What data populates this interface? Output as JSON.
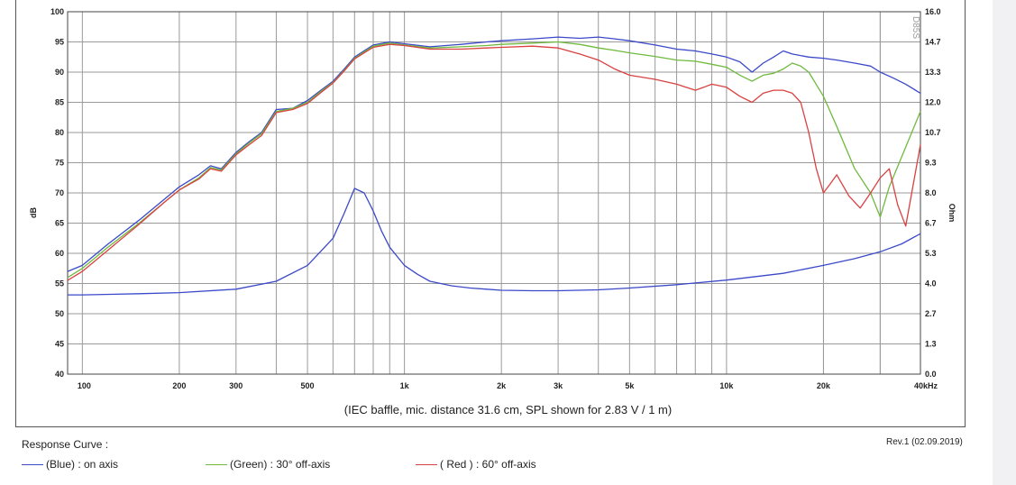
{
  "chart_data": {
    "type": "line",
    "x_scale": "log",
    "xlim": [
      90,
      40000
    ],
    "ylim_left": [
      40,
      100
    ],
    "ylim_right": [
      0.0,
      16.0
    ],
    "grid": true,
    "ylabel_left": "dB",
    "ylabel_right": "Ohm",
    "x_tick_labels": [
      {
        "value": 100,
        "label": "100"
      },
      {
        "value": 200,
        "label": "200"
      },
      {
        "value": 300,
        "label": "300"
      },
      {
        "value": 500,
        "label": "500"
      },
      {
        "value": 1000,
        "label": "1k"
      },
      {
        "value": 2000,
        "label": "2k"
      },
      {
        "value": 3000,
        "label": "3k"
      },
      {
        "value": 5000,
        "label": "5k"
      },
      {
        "value": 10000,
        "label": "10k"
      },
      {
        "value": 20000,
        "label": "20k"
      },
      {
        "value": 40000,
        "label": "40kHz"
      }
    ],
    "y_tick_labels_left": [
      "100",
      "95",
      "90",
      "85",
      "80",
      "75",
      "70",
      "65",
      "60",
      "55",
      "50",
      "45",
      "40"
    ],
    "y_tick_labels_right": [
      "16.0",
      "14.7",
      "13.3",
      "12.0",
      "10.7",
      "9.3",
      "8.0",
      "6.7",
      "5.3",
      "4.0",
      "2.7",
      "1.3",
      "0.0"
    ],
    "watermark": "D85S",
    "series": [
      {
        "name": "(Blue)  : on axis",
        "color": "#3b49c9",
        "axis": "left",
        "x": [
          90,
          100,
          120,
          150,
          180,
          200,
          230,
          250,
          270,
          300,
          330,
          360,
          400,
          450,
          500,
          550,
          600,
          650,
          700,
          800,
          900,
          1000,
          1200,
          1500,
          1800,
          2000,
          2500,
          3000,
          3500,
          4000,
          4500,
          5000,
          6000,
          7000,
          8000,
          9000,
          10000,
          11000,
          12000,
          13000,
          14000,
          15000,
          16000,
          18000,
          20000,
          22000,
          25000,
          28000,
          30000,
          33000,
          36000,
          40000
        ],
        "y": [
          57,
          58,
          61.5,
          65.5,
          69,
          71,
          73,
          74.5,
          74,
          76.7,
          78.5,
          80,
          83.8,
          84,
          85.3,
          87,
          88.5,
          90.5,
          92.5,
          94.5,
          95,
          94.7,
          94.2,
          94.6,
          95,
          95.2,
          95.5,
          95.8,
          95.6,
          95.8,
          95.5,
          95.2,
          94.5,
          93.8,
          93.5,
          93,
          92.5,
          91.7,
          90,
          91.5,
          92.5,
          93.5,
          93,
          92.5,
          92.3,
          92,
          91.5,
          91,
          90,
          89,
          88,
          86.5
        ]
      },
      {
        "name": "(Green) : 30° off-axis",
        "color": "#6fba3e",
        "axis": "left",
        "x": [
          90,
          100,
          120,
          150,
          180,
          200,
          230,
          250,
          270,
          300,
          330,
          360,
          400,
          450,
          500,
          550,
          600,
          650,
          700,
          800,
          900,
          1000,
          1200,
          1500,
          1800,
          2000,
          2500,
          3000,
          3500,
          4000,
          4500,
          5000,
          6000,
          7000,
          8000,
          9000,
          10000,
          11000,
          12000,
          13000,
          14000,
          15000,
          16000,
          17000,
          18000,
          20000,
          22000,
          25000,
          28000,
          30000,
          32000,
          35000,
          40000
        ],
        "y": [
          56,
          57.5,
          61,
          65,
          68.5,
          70.5,
          72.5,
          74.2,
          73.8,
          76.5,
          78.3,
          79.8,
          83.5,
          84,
          85,
          86.8,
          88.3,
          90.3,
          92.3,
          94.3,
          94.8,
          94.5,
          94,
          94.2,
          94.4,
          94.6,
          94.8,
          95,
          94.6,
          94,
          93.6,
          93.2,
          92.6,
          92,
          91.8,
          91.3,
          90.8,
          89.5,
          88.5,
          89.5,
          89.8,
          90.5,
          91.5,
          91,
          90,
          86,
          81,
          74,
          70,
          66,
          71,
          76,
          83.5
        ]
      },
      {
        "name": "( Red ) : 60° off-axis",
        "color": "#d94141",
        "axis": "left",
        "x": [
          90,
          100,
          120,
          150,
          180,
          200,
          230,
          250,
          270,
          300,
          330,
          360,
          400,
          450,
          500,
          550,
          600,
          650,
          700,
          800,
          900,
          1000,
          1200,
          1500,
          1800,
          2000,
          2500,
          3000,
          3500,
          4000,
          4500,
          5000,
          6000,
          7000,
          8000,
          8500,
          9000,
          10000,
          11000,
          12000,
          13000,
          14000,
          15000,
          16000,
          17000,
          18000,
          19000,
          20000,
          21000,
          22000,
          24000,
          26000,
          28000,
          30000,
          32000,
          34000,
          36000,
          40000
        ],
        "y": [
          55.5,
          57,
          60.5,
          64.8,
          68.5,
          70.5,
          72.3,
          74,
          73.6,
          76.3,
          78,
          79.5,
          83.3,
          83.8,
          84.8,
          86.6,
          88.2,
          90.2,
          92.2,
          94.1,
          94.6,
          94.4,
          93.8,
          93.8,
          94,
          94.1,
          94.3,
          94,
          93,
          92,
          90.5,
          89.5,
          88.8,
          88,
          87,
          87.5,
          88,
          87.5,
          86,
          85,
          86.5,
          87,
          87,
          86.5,
          85,
          80,
          74,
          70,
          71.5,
          73,
          69.5,
          67.5,
          70,
          72.5,
          74,
          68,
          64.5,
          78
        ]
      },
      {
        "name": "Impedance",
        "color": "#3b49c9",
        "axis": "right",
        "x": [
          90,
          100,
          150,
          200,
          300,
          400,
          500,
          600,
          650,
          700,
          750,
          800,
          850,
          900,
          1000,
          1100,
          1200,
          1400,
          1600,
          1800,
          2000,
          2500,
          3000,
          4000,
          5000,
          7000,
          10000,
          15000,
          20000,
          25000,
          30000,
          35000,
          40000
        ],
        "y": [
          3.5,
          3.5,
          3.55,
          3.6,
          3.75,
          4.1,
          4.8,
          6.0,
          7.1,
          8.2,
          8.0,
          7.2,
          6.3,
          5.6,
          4.8,
          4.4,
          4.1,
          3.9,
          3.8,
          3.75,
          3.7,
          3.68,
          3.68,
          3.72,
          3.8,
          3.95,
          4.15,
          4.45,
          4.8,
          5.1,
          5.4,
          5.75,
          6.2
        ]
      }
    ]
  },
  "caption": "(IEC baffle, mic. distance 31.6 cm, SPL shown for 2.83 V / 1 m)",
  "footer": {
    "title": "Response Curve :",
    "revision": "Rev.1 (02.09.2019)",
    "legend": [
      {
        "label": "(Blue)  : on axis",
        "color": "#3b49c9"
      },
      {
        "label": "(Green) : 30° off-axis",
        "color": "#6fba3e"
      },
      {
        "label": "( Red ) : 60° off-axis",
        "color": "#d94141"
      }
    ]
  }
}
